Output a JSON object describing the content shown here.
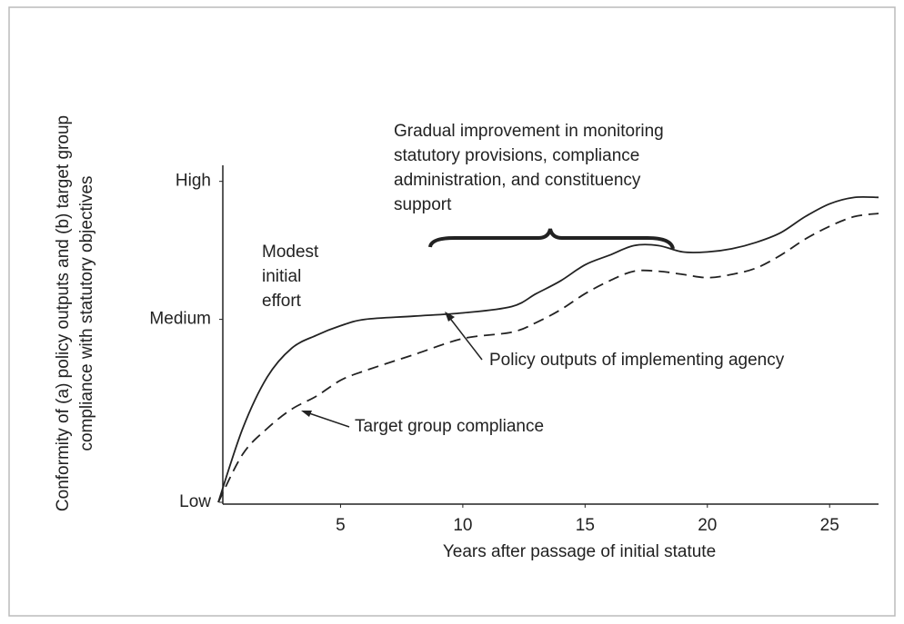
{
  "chart_data": {
    "type": "line",
    "xlabel": "Years after passage of initial statute",
    "ylabel": [
      "Conformity of (a) policy outputs and (b) target group",
      "compliance with statutory objectives"
    ],
    "x": [
      0,
      1,
      2,
      3,
      4,
      5,
      6,
      8,
      10,
      12,
      13,
      14,
      15,
      16,
      17,
      18,
      19,
      20,
      21,
      22,
      23,
      24,
      25,
      26,
      27
    ],
    "series": [
      {
        "name": "Policy outputs of implementing agency",
        "color": "#222222",
        "dash": "solid",
        "values": [
          0,
          23,
          39,
          48,
          52,
          55,
          57,
          58,
          59,
          61,
          65,
          69,
          74,
          77,
          80,
          80,
          78,
          78,
          79,
          81,
          84,
          89,
          93,
          95,
          95
        ]
      },
      {
        "name": "Target group compliance",
        "color": "#222222",
        "dash": "dashed",
        "values": [
          0,
          15,
          23,
          29,
          33,
          38,
          41,
          46,
          51,
          53,
          56,
          60,
          65,
          69,
          72,
          72,
          71,
          70,
          71,
          73,
          77,
          82,
          86,
          89,
          90
        ]
      }
    ],
    "xlim": [
      0,
      27
    ],
    "xticks": [
      5,
      10,
      15,
      20,
      25
    ],
    "ylim": [
      0,
      105
    ],
    "yticks": [
      {
        "value": 0,
        "label": "Low"
      },
      {
        "value": 57,
        "label": "Medium"
      },
      {
        "value": 100,
        "label": "High"
      }
    ],
    "annotations": [
      [
        "Gradual improvement in monitoring",
        "statutory provisions, compliance",
        "administration, and constituency",
        "support"
      ],
      [
        "Modest",
        "initial",
        "effort"
      ]
    ]
  }
}
